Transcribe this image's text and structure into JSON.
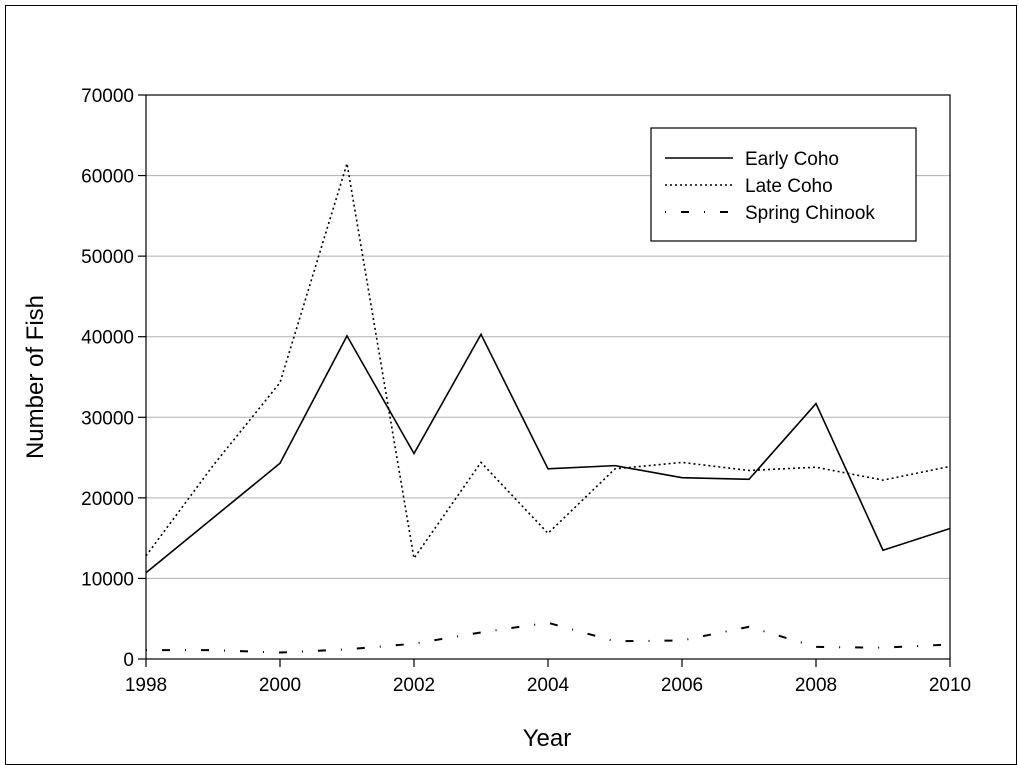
{
  "chart_data": {
    "type": "line",
    "title": "",
    "xlabel": "Year",
    "ylabel": "Number of Fish",
    "xlim": [
      1998,
      2010
    ],
    "ylim": [
      0,
      70000
    ],
    "xticks": [
      1998,
      2000,
      2002,
      2004,
      2006,
      2008,
      2010
    ],
    "yticks": [
      0,
      10000,
      20000,
      30000,
      40000,
      50000,
      60000,
      70000
    ],
    "grid": "horizontal",
    "legend": "top-right",
    "x": [
      1998,
      1999,
      2000,
      2001,
      2002,
      2003,
      2004,
      2005,
      2006,
      2007,
      2008,
      2009,
      2010
    ],
    "series": [
      {
        "name": "Early Coho",
        "style": "solid",
        "values": [
          10700,
          17500,
          24300,
          40100,
          25500,
          40300,
          23600,
          24000,
          22500,
          22300,
          31700,
          13500,
          16200
        ]
      },
      {
        "name": "Late Coho",
        "style": "dotted",
        "values": [
          12800,
          24000,
          34300,
          61500,
          12500,
          24400,
          15600,
          23600,
          24400,
          23400,
          23800,
          22200,
          23900
        ]
      },
      {
        "name": "Spring Chinook",
        "style": "dashdot",
        "values": [
          1100,
          1100,
          800,
          1200,
          1900,
          3300,
          4500,
          2200,
          2300,
          4000,
          1500,
          1400,
          1800
        ]
      }
    ]
  }
}
